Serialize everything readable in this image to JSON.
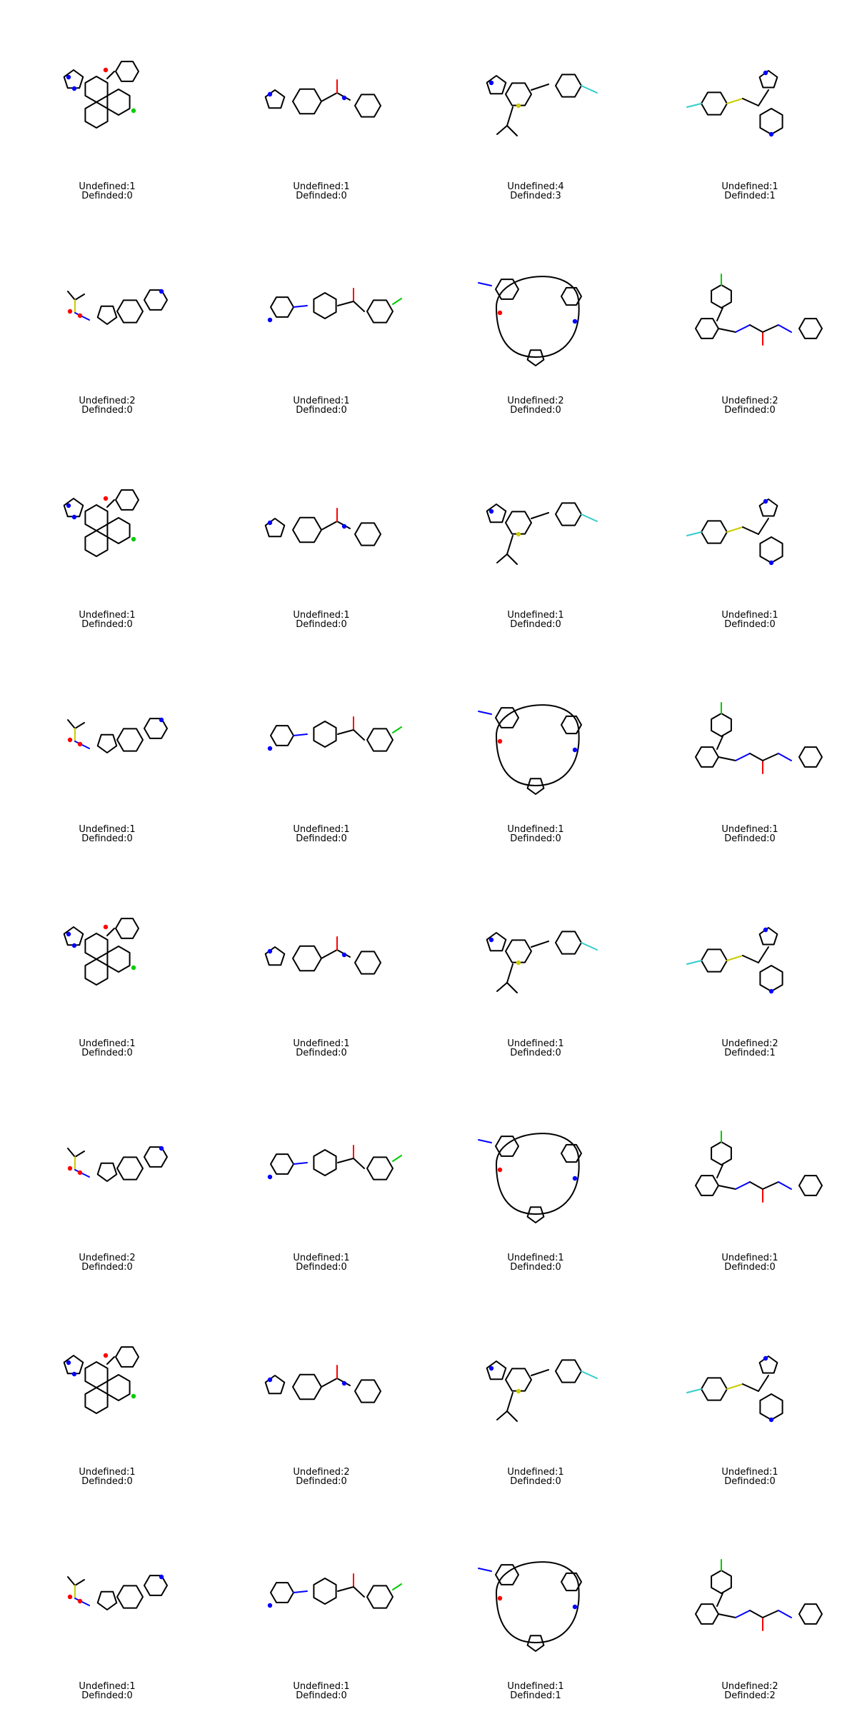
{
  "cells": [
    {
      "undefined": "Undefined:1",
      "defined": "Definded:0"
    },
    {
      "undefined": "Undefined:1",
      "defined": "Definded:0"
    },
    {
      "undefined": "Undefined:4",
      "defined": "Definded:3"
    },
    {
      "undefined": "Undefined:1",
      "defined": "Definded:1"
    },
    {
      "undefined": "Undefined:2",
      "defined": "Definded:0"
    },
    {
      "undefined": "Undefined:1",
      "defined": "Definded:0"
    },
    {
      "undefined": "Undefined:2",
      "defined": "Definded:0"
    },
    {
      "undefined": "Undefined:2",
      "defined": "Definded:0"
    },
    {
      "undefined": "Undefined:1",
      "defined": "Definded:0"
    },
    {
      "undefined": "Undefined:1",
      "defined": "Definded:0"
    },
    {
      "undefined": "Undefined:1",
      "defined": "Definded:0"
    },
    {
      "undefined": "Undefined:1",
      "defined": "Definded:0"
    },
    {
      "undefined": "Undefined:1",
      "defined": "Definded:0"
    },
    {
      "undefined": "Undefined:1",
      "defined": "Definded:0"
    },
    {
      "undefined": "Undefined:1",
      "defined": "Definded:0"
    },
    {
      "undefined": "Undefined:1",
      "defined": "Definded:0"
    },
    {
      "undefined": "Undefined:1",
      "defined": "Definded:0"
    },
    {
      "undefined": "Undefined:1",
      "defined": "Definded:0"
    },
    {
      "undefined": "Undefined:1",
      "defined": "Definded:0"
    },
    {
      "undefined": "Undefined:2",
      "defined": "Definded:1"
    },
    {
      "undefined": "Undefined:2",
      "defined": "Definded:0"
    },
    {
      "undefined": "Undefined:1",
      "defined": "Definded:0"
    },
    {
      "undefined": "Undefined:1",
      "defined": "Definded:0"
    },
    {
      "undefined": "Undefined:1",
      "defined": "Definded:0"
    },
    {
      "undefined": "Undefined:1",
      "defined": "Definded:0"
    },
    {
      "undefined": "Undefined:2",
      "defined": "Definded:0"
    },
    {
      "undefined": "Undefined:1",
      "defined": "Definded:0"
    },
    {
      "undefined": "Undefined:1",
      "defined": "Definded:0"
    },
    {
      "undefined": "Undefined:1",
      "defined": "Definded:0"
    },
    {
      "undefined": "Undefined:1",
      "defined": "Definded:0"
    },
    {
      "undefined": "Undefined:1",
      "defined": "Definded:1"
    },
    {
      "undefined": "Undefined:2",
      "defined": "Definded:2"
    }
  ],
  "atom_colors": {
    "carbon": "#000000",
    "nitrogen": "#0000ff",
    "oxygen": "#ff0000",
    "chlorine": "#00cc00",
    "fluorine": "#33cccc",
    "sulfur": "#cccc00",
    "bromine": "#a52a2a"
  }
}
